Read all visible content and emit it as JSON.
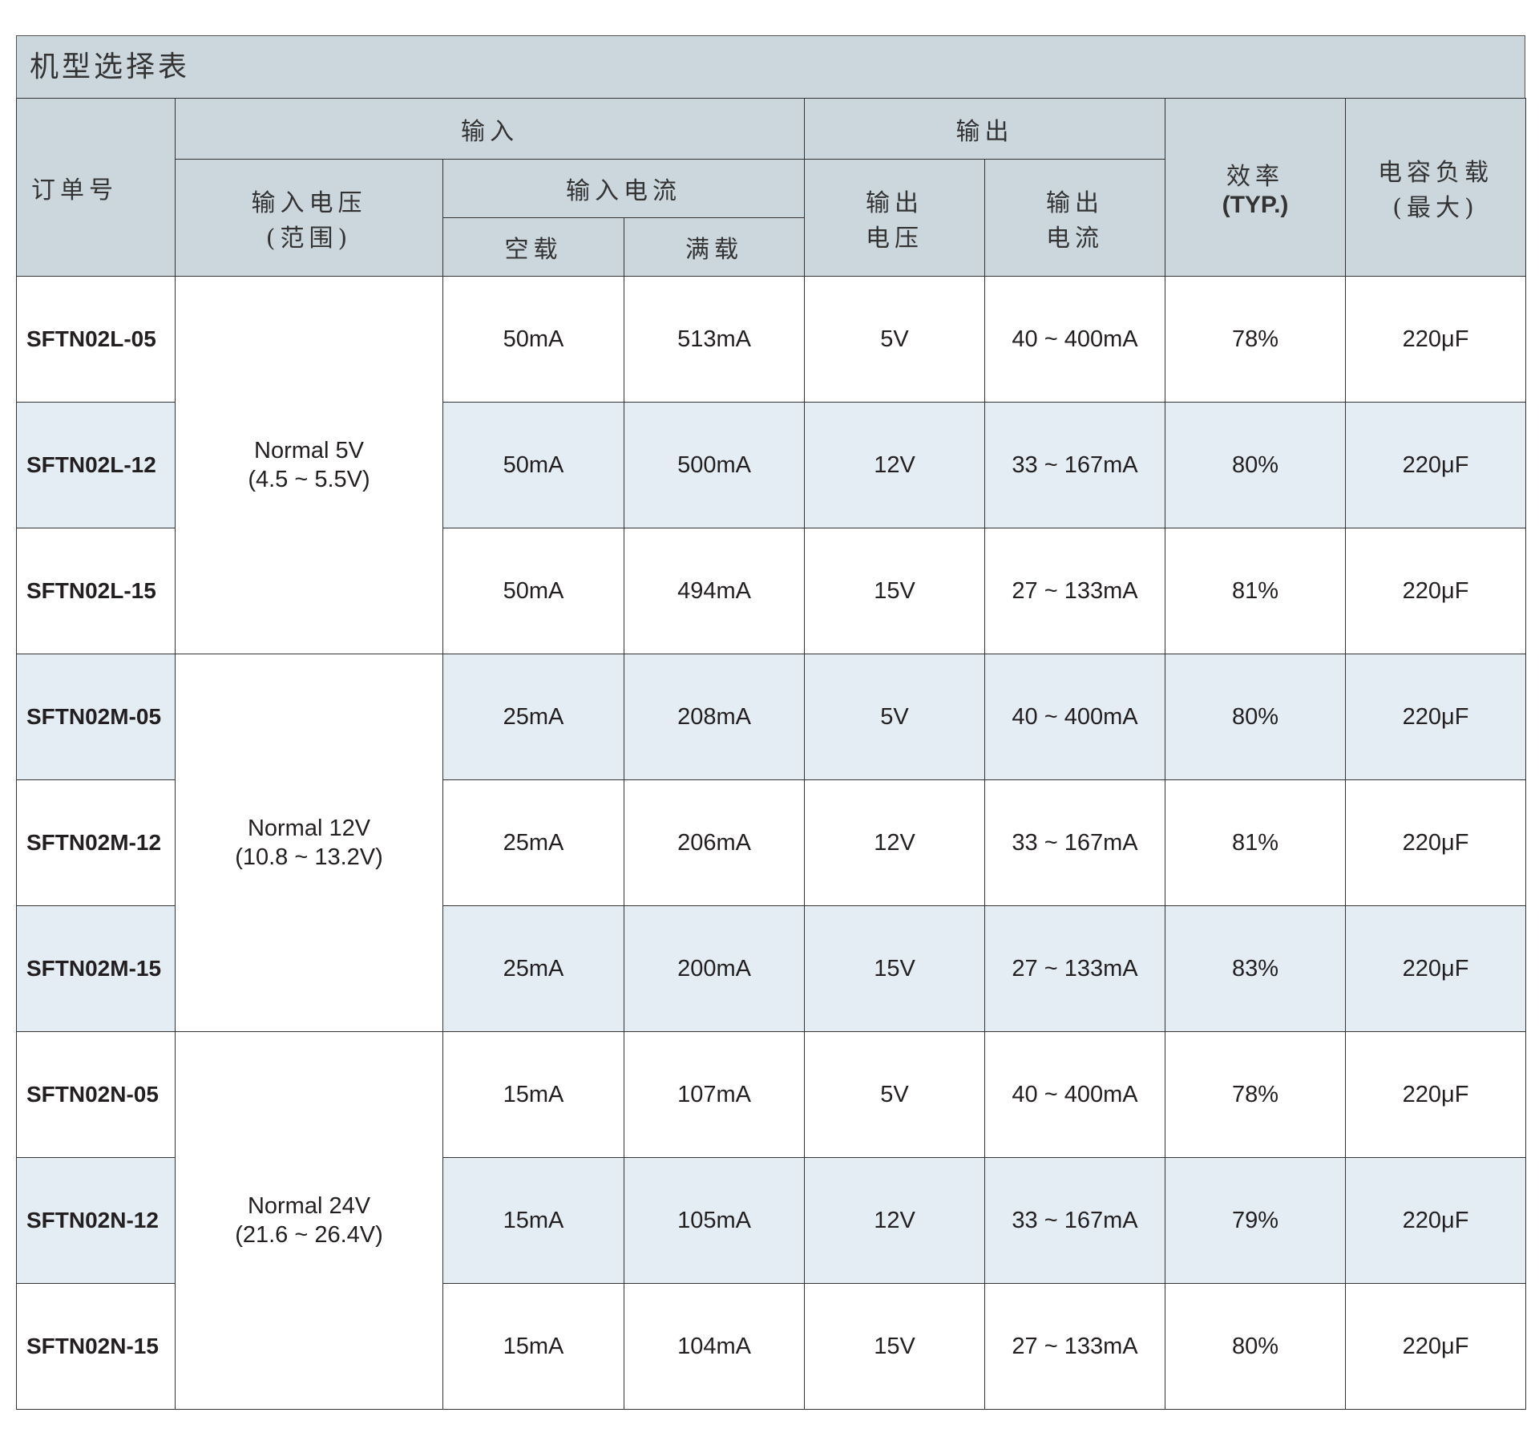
{
  "title": "机型选择表",
  "headers": {
    "order_no": "订单号",
    "input": "输入",
    "output": "输出",
    "input_voltage": "输入电压",
    "input_voltage_sub": "(范围)",
    "input_current": "输入电流",
    "no_load": "空载",
    "full_load": "满载",
    "output_voltage_1": "输出",
    "output_voltage_2": "电压",
    "output_current_1": "输出",
    "output_current_2": "电流",
    "efficiency": "效率",
    "efficiency_sub": "(TYP.)",
    "cap_load": "电容负载",
    "cap_load_sub": "(最大)"
  },
  "groups": [
    {
      "range_1": "Normal 5V",
      "range_2": "(4.5 ~ 5.5V)"
    },
    {
      "range_1": "Normal 12V",
      "range_2": "(10.8 ~ 13.2V)"
    },
    {
      "range_1": "Normal 24V",
      "range_2": "(21.6 ~ 26.4V)"
    }
  ],
  "rows": [
    {
      "model": "SFTN02L-05",
      "no_load": "50mA",
      "full_load": "513mA",
      "vout": "5V",
      "iout": "40 ~ 400mA",
      "eff": "78%",
      "cap": "220μF"
    },
    {
      "model": "SFTN02L-12",
      "no_load": "50mA",
      "full_load": "500mA",
      "vout": "12V",
      "iout": "33 ~ 167mA",
      "eff": "80%",
      "cap": "220μF"
    },
    {
      "model": "SFTN02L-15",
      "no_load": "50mA",
      "full_load": "494mA",
      "vout": "15V",
      "iout": "27 ~ 133mA",
      "eff": "81%",
      "cap": "220μF"
    },
    {
      "model": "SFTN02M-05",
      "no_load": "25mA",
      "full_load": "208mA",
      "vout": "5V",
      "iout": "40 ~ 400mA",
      "eff": "80%",
      "cap": "220μF"
    },
    {
      "model": "SFTN02M-12",
      "no_load": "25mA",
      "full_load": "206mA",
      "vout": "12V",
      "iout": "33 ~ 167mA",
      "eff": "81%",
      "cap": "220μF"
    },
    {
      "model": "SFTN02M-15",
      "no_load": "25mA",
      "full_load": "200mA",
      "vout": "15V",
      "iout": "27 ~ 133mA",
      "eff": "83%",
      "cap": "220μF"
    },
    {
      "model": "SFTN02N-05",
      "no_load": "15mA",
      "full_load": "107mA",
      "vout": "5V",
      "iout": "40 ~ 400mA",
      "eff": "78%",
      "cap": "220μF"
    },
    {
      "model": "SFTN02N-12",
      "no_load": "15mA",
      "full_load": "105mA",
      "vout": "12V",
      "iout": "33 ~ 167mA",
      "eff": "79%",
      "cap": "220μF"
    },
    {
      "model": "SFTN02N-15",
      "no_load": "15mA",
      "full_load": "104mA",
      "vout": "15V",
      "iout": "27 ~ 133mA",
      "eff": "80%",
      "cap": "220μF"
    }
  ],
  "colors": {
    "header_bg": "#cbd6dd",
    "alt_row_bg": "#e3edf3",
    "border": "#333333"
  }
}
